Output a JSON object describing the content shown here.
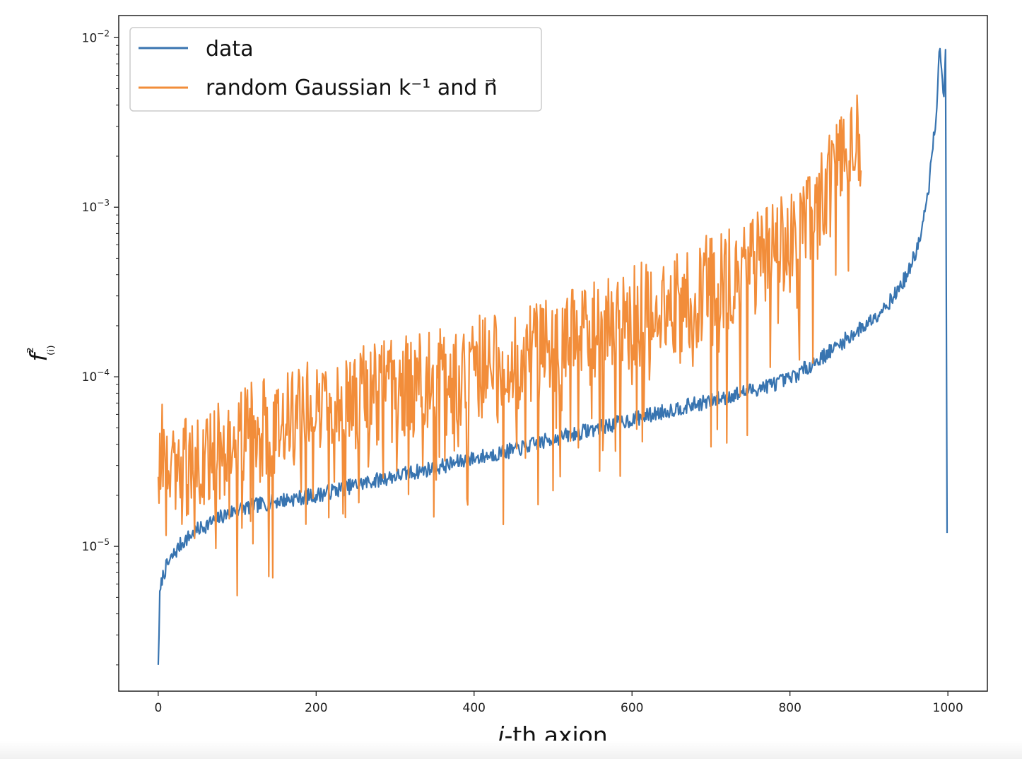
{
  "chart_data": {
    "type": "line",
    "xlabel": "i-th axion",
    "ylabel": "f²₍ᵢ₎",
    "xlim": [
      -50,
      1050
    ],
    "ylim": [
      1.4e-06,
      0.0135
    ],
    "y_scale": "log",
    "x_ticks": [
      0,
      200,
      400,
      600,
      800,
      1000
    ],
    "x_tick_labels": [
      "0",
      "200",
      "400",
      "600",
      "800",
      "1000"
    ],
    "y_ticks": [
      1e-05,
      0.0001,
      0.001,
      0.01
    ],
    "y_tick_labels": [
      {
        "base": "10",
        "exp": "−5"
      },
      {
        "base": "10",
        "exp": "−4"
      },
      {
        "base": "10",
        "exp": "−3"
      },
      {
        "base": "10",
        "exp": "−2"
      }
    ],
    "grid": false,
    "legend_position": "top-left",
    "series": [
      {
        "name": "data",
        "color": "#3874b0",
        "x": [
          0,
          2,
          5,
          10,
          20,
          30,
          50,
          80,
          100,
          150,
          200,
          250,
          300,
          350,
          400,
          450,
          500,
          550,
          600,
          650,
          700,
          750,
          800,
          850,
          900,
          930,
          950,
          965,
          975,
          985,
          990,
          995,
          997,
          998,
          999
        ],
        "y": [
          2e-06,
          5e-06,
          6.5e-06,
          7.5e-06,
          9e-06,
          1.05e-05,
          1.25e-05,
          1.5e-05,
          1.65e-05,
          1.85e-05,
          2e-05,
          2.3e-05,
          2.6e-05,
          2.9e-05,
          3.3e-05,
          3.7e-05,
          4.3e-05,
          4.9e-05,
          5.6e-05,
          6.4e-05,
          7.2e-05,
          8.3e-05,
          9.7e-05,
          0.00014,
          0.00021,
          0.00029,
          0.00041,
          0.00065,
          0.0012,
          0.0035,
          0.009,
          0.0045,
          0.0085,
          0.0003,
          1.2e-05
        ]
      },
      {
        "name": "random Gaussian k⁻¹ and n⃗",
        "color": "#f28d3a",
        "x": [
          0,
          10,
          20,
          40,
          60,
          80,
          100,
          150,
          200,
          250,
          300,
          350,
          400,
          450,
          500,
          550,
          600,
          650,
          700,
          750,
          800,
          830,
          860,
          880,
          890
        ],
        "y": [
          3.8e-05,
          3.6e-05,
          3.3e-05,
          3.1e-05,
          3.3e-05,
          3.8e-05,
          4.5e-05,
          5.8e-05,
          6.8e-05,
          7.8e-05,
          9e-05,
          0.0001,
          0.00012,
          0.000135,
          0.00016,
          0.00019,
          0.00024,
          0.00029,
          0.00037,
          0.00047,
          0.00065,
          0.0009,
          0.0018,
          0.0035,
          0.0025
        ]
      }
    ]
  }
}
